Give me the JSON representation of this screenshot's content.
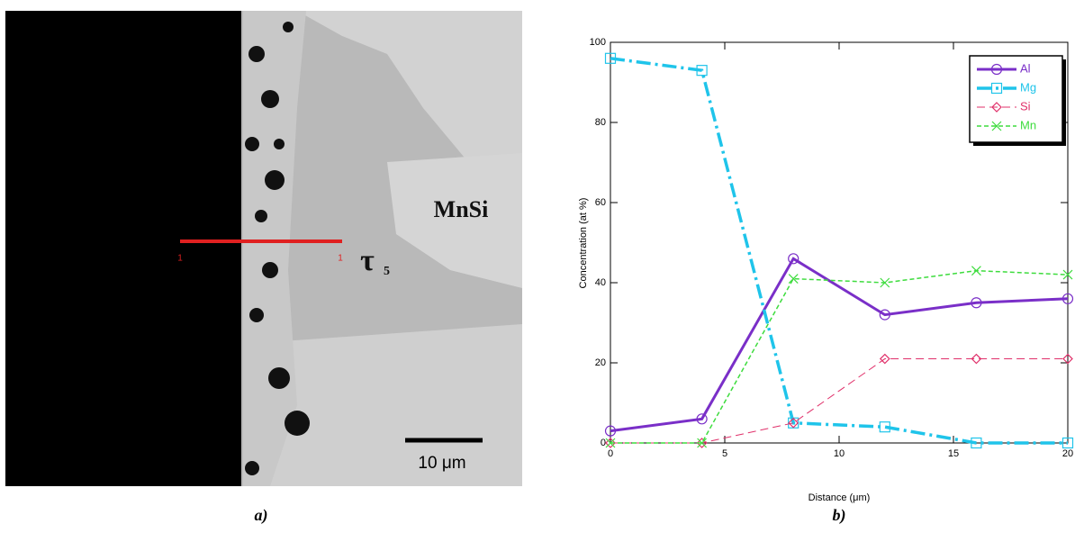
{
  "image": {
    "labels": [
      "MnSi",
      "τ",
      "5",
      "10 μm"
    ],
    "line_markers": [
      "1",
      "1"
    ],
    "caption": "a)"
  },
  "chart_data": {
    "type": "line",
    "caption": "b)",
    "x_label": "Distance (μm)",
    "y_label": "Concentration (at %)",
    "x": [
      0,
      4,
      8,
      12,
      16,
      20
    ],
    "series": [
      {
        "name": "Al",
        "color": "#7a2fc8",
        "linestyle": "solid",
        "marker": "circle",
        "values": [
          3,
          6,
          46,
          32,
          35,
          36
        ]
      },
      {
        "name": "Mg",
        "color": "#1fc4ea",
        "linestyle": "dashdot",
        "marker": "square",
        "values": [
          96,
          93,
          5,
          4,
          0,
          0
        ]
      },
      {
        "name": "Si",
        "color": "#e0306a",
        "linestyle": "dashed",
        "marker": "diamond",
        "values": [
          0,
          0,
          5,
          21,
          21,
          21
        ]
      },
      {
        "name": "Mn",
        "color": "#3edc3e",
        "linestyle": "short-dashed",
        "marker": "x",
        "values": [
          0,
          0,
          41,
          40,
          43,
          42
        ]
      }
    ],
    "xlim": [
      0,
      20
    ],
    "xticks": [
      0,
      5,
      10,
      15,
      20
    ],
    "ylim": [
      0,
      100
    ],
    "yticks": [
      0,
      20,
      40,
      60,
      80,
      100
    ],
    "legend": "upper right"
  }
}
